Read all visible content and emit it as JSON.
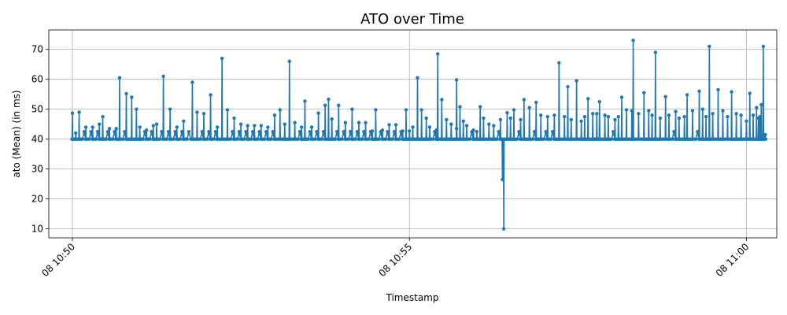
{
  "chart_data": {
    "type": "line",
    "title": "ATO over Time",
    "xlabel": "Timestamp",
    "ylabel": "ato (Mean) (in ms)",
    "x_ticks": [
      {
        "minute": 0,
        "label": "08 10:50"
      },
      {
        "minute": 5,
        "label": "08 10:55"
      },
      {
        "minute": 10,
        "label": "08 11:00"
      }
    ],
    "y_ticks": [
      10,
      20,
      30,
      40,
      50,
      60,
      70
    ],
    "xlim_minutes": [
      -0.35,
      10.45
    ],
    "ylim": [
      7,
      76.5
    ],
    "grid": true,
    "marker": "circle",
    "series": [
      {
        "color": "#1f77b4",
        "x_start_minute": 0.0,
        "x_end_minute": 10.25,
        "baseline": 40,
        "spikes": [
          [
            0.0,
            48.7
          ],
          [
            0.05,
            42.0
          ],
          [
            0.1,
            49.0
          ],
          [
            0.2,
            44.0
          ],
          [
            0.3,
            44.0
          ],
          [
            0.4,
            45.0
          ],
          [
            0.45,
            47.5
          ],
          [
            0.55,
            43.5
          ],
          [
            0.65,
            43.5
          ],
          [
            0.7,
            60.5
          ],
          [
            0.8,
            55.2
          ],
          [
            0.88,
            54.0
          ],
          [
            0.95,
            50.0
          ],
          [
            1.0,
            44.0
          ],
          [
            1.1,
            43.0
          ],
          [
            1.2,
            44.5
          ],
          [
            1.25,
            45.0
          ],
          [
            1.35,
            61.0
          ],
          [
            1.45,
            50.0
          ],
          [
            1.55,
            44.0
          ],
          [
            1.65,
            46.0
          ],
          [
            1.78,
            59.0
          ],
          [
            1.85,
            49.0
          ],
          [
            1.95,
            48.5
          ],
          [
            2.05,
            54.8
          ],
          [
            2.15,
            44.0
          ],
          [
            2.22,
            67.0
          ],
          [
            2.3,
            49.8
          ],
          [
            2.4,
            47.0
          ],
          [
            2.5,
            45.0
          ],
          [
            2.6,
            44.5
          ],
          [
            2.7,
            44.5
          ],
          [
            2.8,
            44.5
          ],
          [
            2.9,
            44.0
          ],
          [
            3.0,
            48.0
          ],
          [
            3.08,
            49.8
          ],
          [
            3.15,
            45.0
          ],
          [
            3.22,
            66.0
          ],
          [
            3.3,
            45.5
          ],
          [
            3.4,
            44.0
          ],
          [
            3.45,
            52.7
          ],
          [
            3.55,
            44.0
          ],
          [
            3.65,
            48.7
          ],
          [
            3.75,
            51.3
          ],
          [
            3.8,
            53.3
          ],
          [
            3.85,
            46.7
          ],
          [
            3.95,
            51.3
          ],
          [
            4.05,
            45.5
          ],
          [
            4.15,
            50.0
          ],
          [
            4.25,
            45.5
          ],
          [
            4.35,
            45.5
          ],
          [
            4.45,
            42.7
          ],
          [
            4.5,
            49.8
          ],
          [
            4.6,
            43.0
          ],
          [
            4.7,
            44.8
          ],
          [
            4.8,
            44.8
          ],
          [
            4.9,
            42.7
          ],
          [
            5.0,
            42.7
          ],
          [
            4.95,
            49.8
          ],
          [
            5.05,
            44.0
          ],
          [
            5.12,
            60.5
          ],
          [
            5.18,
            49.8
          ],
          [
            5.25,
            47.0
          ],
          [
            5.3,
            44.0
          ],
          [
            5.4,
            43.0
          ],
          [
            5.42,
            68.5
          ],
          [
            5.48,
            53.2
          ],
          [
            5.55,
            46.5
          ],
          [
            5.62,
            45.0
          ],
          [
            5.7,
            43.5
          ],
          [
            5.7,
            59.8
          ],
          [
            5.75,
            50.8
          ],
          [
            5.8,
            46.0
          ],
          [
            5.85,
            44.5
          ],
          [
            5.95,
            43.0
          ],
          [
            6.0,
            42.5
          ],
          [
            6.05,
            50.8
          ],
          [
            6.1,
            47.0
          ],
          [
            6.18,
            45.0
          ],
          [
            6.25,
            44.5
          ],
          [
            6.35,
            46.5
          ],
          [
            6.38,
            26.5
          ],
          [
            6.4,
            10.0
          ],
          [
            6.45,
            48.8
          ],
          [
            6.5,
            47.0
          ],
          [
            6.55,
            49.8
          ],
          [
            6.65,
            46.5
          ],
          [
            6.7,
            53.2
          ],
          [
            6.78,
            50.5
          ],
          [
            6.88,
            52.3
          ],
          [
            6.95,
            48.0
          ],
          [
            7.05,
            47.5
          ],
          [
            7.15,
            48.0
          ],
          [
            7.22,
            65.5
          ],
          [
            7.3,
            47.5
          ],
          [
            7.35,
            57.5
          ],
          [
            7.4,
            46.5
          ],
          [
            7.48,
            59.5
          ],
          [
            7.55,
            46.0
          ],
          [
            7.6,
            47.5
          ],
          [
            7.65,
            53.5
          ],
          [
            7.72,
            48.5
          ],
          [
            7.78,
            48.5
          ],
          [
            7.82,
            52.5
          ],
          [
            7.9,
            48.0
          ],
          [
            7.95,
            47.5
          ],
          [
            8.05,
            46.5
          ],
          [
            8.1,
            47.5
          ],
          [
            8.15,
            54.0
          ],
          [
            8.22,
            49.8
          ],
          [
            8.3,
            49.5
          ],
          [
            8.32,
            73.0
          ],
          [
            8.4,
            48.5
          ],
          [
            8.48,
            55.5
          ],
          [
            8.55,
            49.5
          ],
          [
            8.6,
            48.0
          ],
          [
            8.65,
            69.0
          ],
          [
            8.72,
            47.0
          ],
          [
            8.8,
            54.2
          ],
          [
            8.85,
            48.0
          ],
          [
            8.95,
            49.2
          ],
          [
            9.0,
            47.0
          ],
          [
            9.08,
            47.5
          ],
          [
            9.12,
            54.8
          ],
          [
            9.2,
            49.5
          ],
          [
            9.3,
            56.0
          ],
          [
            9.35,
            50.0
          ],
          [
            9.4,
            47.5
          ],
          [
            9.45,
            71.0
          ],
          [
            9.5,
            48.5
          ],
          [
            9.58,
            56.5
          ],
          [
            9.65,
            49.5
          ],
          [
            9.72,
            47.5
          ],
          [
            9.78,
            55.8
          ],
          [
            9.85,
            48.5
          ],
          [
            9.92,
            48.0
          ],
          [
            10.0,
            46.0
          ],
          [
            10.05,
            55.3
          ],
          [
            10.1,
            48.0
          ],
          [
            10.15,
            50.5
          ],
          [
            10.18,
            47.0
          ],
          [
            10.2,
            47.5
          ],
          [
            10.22,
            51.5
          ],
          [
            10.25,
            71.0
          ],
          [
            10.28,
            41.5
          ]
        ]
      }
    ]
  }
}
